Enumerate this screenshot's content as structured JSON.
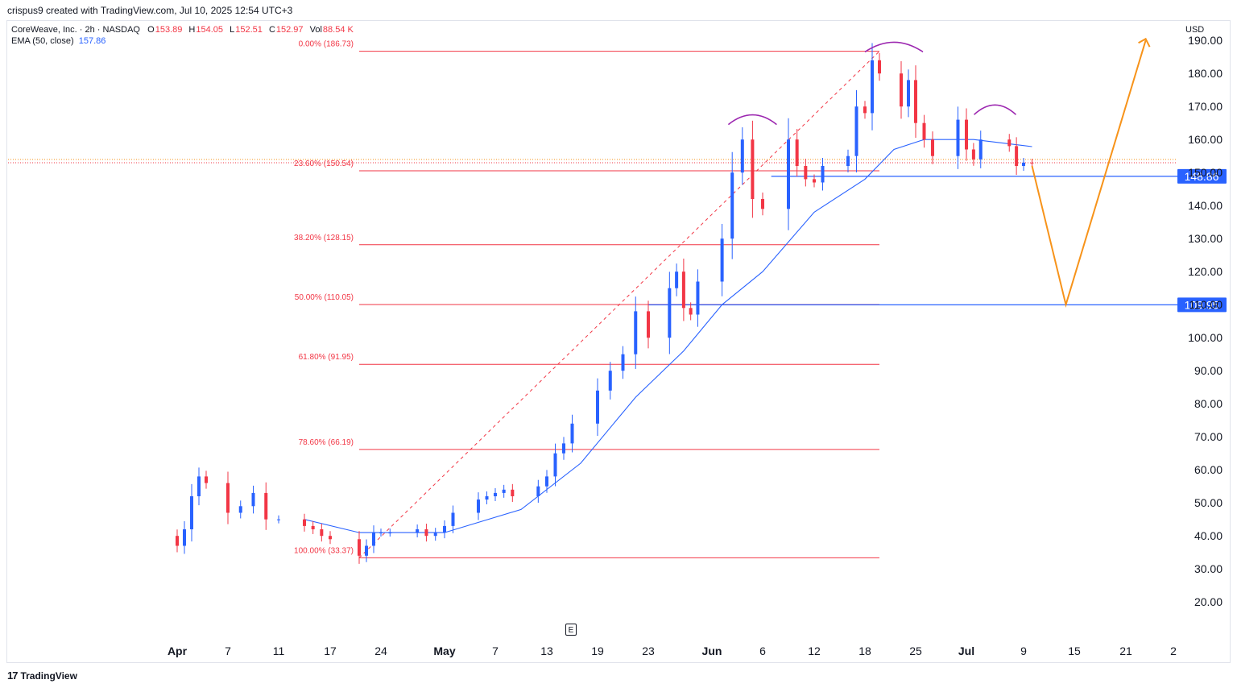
{
  "header": {
    "caption": "crispus9 created with TradingView.com, Jul 10, 2025 12:54 UTC+3"
  },
  "legend": {
    "symbol": "CoreWeave, Inc. · 2h · NASDAQ",
    "open_label": "O",
    "open": "153.89",
    "high_label": "H",
    "high": "154.05",
    "low_label": "L",
    "low": "152.51",
    "close_label": "C",
    "close": "152.97",
    "vol_label": "Vol",
    "vol": "88.54 K",
    "ema_label": "EMA (50, close)",
    "ema_value": "157.86"
  },
  "currency": "USD",
  "earnings_marker": "E",
  "footer": {
    "brand": "TradingView",
    "logo_glyph": "17"
  },
  "colors": {
    "up": "#2962ff",
    "down": "#f23645",
    "ema": "#2962ff",
    "fib": "#f23645",
    "support": "#2962ff",
    "projection": "#f7931a",
    "pattern_arc": "#9c27b0",
    "axis_text": "#131722"
  },
  "chart_data": {
    "type": "candlestick",
    "interval": "2h",
    "y_axis": {
      "side": "right",
      "ylim": [
        15,
        198
      ],
      "ticks": [
        20,
        30,
        40,
        50,
        60,
        70,
        80,
        90,
        100,
        110,
        120,
        130,
        140,
        150,
        160,
        170,
        180,
        190
      ],
      "tick_labels": [
        "20.00",
        "30.00",
        "40.00",
        "50.00",
        "60.00",
        "70.00",
        "80.00",
        "90.00",
        "100.00",
        "110.00",
        "120.00",
        "130.00",
        "140.00",
        "150.00",
        "160.00",
        "170.00",
        "180.00",
        "190.00"
      ]
    },
    "x_axis": {
      "ticks": [
        {
          "date": "2025-03-31",
          "label": "Apr"
        },
        {
          "date": "2025-04-07",
          "label": "7"
        },
        {
          "date": "2025-04-11",
          "label": "11"
        },
        {
          "date": "2025-04-17",
          "label": "17"
        },
        {
          "date": "2025-04-24",
          "label": "24"
        },
        {
          "date": "2025-05-01",
          "label": "May"
        },
        {
          "date": "2025-05-07",
          "label": "7"
        },
        {
          "date": "2025-05-13",
          "label": "13"
        },
        {
          "date": "2025-05-19",
          "label": "19"
        },
        {
          "date": "2025-05-23",
          "label": "23"
        },
        {
          "date": "2025-06-01",
          "label": "Jun"
        },
        {
          "date": "2025-06-06",
          "label": "6"
        },
        {
          "date": "2025-06-12",
          "label": "12"
        },
        {
          "date": "2025-06-18",
          "label": "18"
        },
        {
          "date": "2025-06-25",
          "label": "25"
        },
        {
          "date": "2025-07-01",
          "label": "Jul"
        },
        {
          "date": "2025-07-09",
          "label": "9"
        },
        {
          "date": "2025-07-15",
          "label": "15"
        },
        {
          "date": "2025-07-21",
          "label": "21"
        },
        {
          "date": "2025-08-02",
          "label": "2"
        }
      ]
    },
    "price_path": [
      {
        "date": "2025-03-28",
        "close": 40
      },
      {
        "date": "2025-03-31",
        "close": 37
      },
      {
        "date": "2025-04-01",
        "close": 42
      },
      {
        "date": "2025-04-02",
        "close": 52
      },
      {
        "date": "2025-04-03",
        "close": 58
      },
      {
        "date": "2025-04-04",
        "close": 56
      },
      {
        "date": "2025-04-07",
        "close": 47
      },
      {
        "date": "2025-04-08",
        "close": 49
      },
      {
        "date": "2025-04-09",
        "close": 53
      },
      {
        "date": "2025-04-10",
        "close": 45
      },
      {
        "date": "2025-04-11",
        "close": 45
      },
      {
        "date": "2025-04-14",
        "close": 43
      },
      {
        "date": "2025-04-15",
        "close": 42
      },
      {
        "date": "2025-04-16",
        "close": 40
      },
      {
        "date": "2025-04-17",
        "close": 39
      },
      {
        "date": "2025-04-21",
        "close": 34
      },
      {
        "date": "2025-04-22",
        "close": 37
      },
      {
        "date": "2025-04-23",
        "close": 41
      },
      {
        "date": "2025-04-24",
        "close": 41
      },
      {
        "date": "2025-04-25",
        "close": 41
      },
      {
        "date": "2025-04-28",
        "close": 42
      },
      {
        "date": "2025-04-29",
        "close": 40
      },
      {
        "date": "2025-04-30",
        "close": 41
      },
      {
        "date": "2025-05-01",
        "close": 43
      },
      {
        "date": "2025-05-02",
        "close": 47
      },
      {
        "date": "2025-05-05",
        "close": 51
      },
      {
        "date": "2025-05-06",
        "close": 52
      },
      {
        "date": "2025-05-07",
        "close": 53
      },
      {
        "date": "2025-05-08",
        "close": 54
      },
      {
        "date": "2025-05-09",
        "close": 52
      },
      {
        "date": "2025-05-12",
        "close": 55
      },
      {
        "date": "2025-05-13",
        "close": 58
      },
      {
        "date": "2025-05-14",
        "close": 65
      },
      {
        "date": "2025-05-15",
        "close": 68
      },
      {
        "date": "2025-05-16",
        "close": 74
      },
      {
        "date": "2025-05-19",
        "close": 84
      },
      {
        "date": "2025-05-20",
        "close": 90
      },
      {
        "date": "2025-05-21",
        "close": 95
      },
      {
        "date": "2025-05-22",
        "close": 108
      },
      {
        "date": "2025-05-23",
        "close": 100
      },
      {
        "date": "2025-05-26",
        "close": 115
      },
      {
        "date": "2025-05-27",
        "close": 120
      },
      {
        "date": "2025-05-28",
        "close": 109
      },
      {
        "date": "2025-05-29",
        "close": 107
      },
      {
        "date": "2025-05-30",
        "close": 117
      },
      {
        "date": "2025-06-02",
        "close": 130
      },
      {
        "date": "2025-06-03",
        "close": 150
      },
      {
        "date": "2025-06-04",
        "close": 160
      },
      {
        "date": "2025-06-05",
        "close": 142
      },
      {
        "date": "2025-06-06",
        "close": 139
      },
      {
        "date": "2025-06-09",
        "close": 160
      },
      {
        "date": "2025-06-10",
        "close": 152
      },
      {
        "date": "2025-06-11",
        "close": 148
      },
      {
        "date": "2025-06-12",
        "close": 147
      },
      {
        "date": "2025-06-13",
        "close": 152
      },
      {
        "date": "2025-06-16",
        "close": 155
      },
      {
        "date": "2025-06-17",
        "close": 170
      },
      {
        "date": "2025-06-18",
        "close": 168
      },
      {
        "date": "2025-06-19",
        "close": 184
      },
      {
        "date": "2025-06-20",
        "close": 180
      },
      {
        "date": "2025-06-23",
        "close": 170
      },
      {
        "date": "2025-06-24",
        "close": 178
      },
      {
        "date": "2025-06-25",
        "close": 165
      },
      {
        "date": "2025-06-26",
        "close": 160
      },
      {
        "date": "2025-06-27",
        "close": 155
      },
      {
        "date": "2025-06-30",
        "close": 166
      },
      {
        "date": "2025-07-01",
        "close": 157
      },
      {
        "date": "2025-07-02",
        "close": 154
      },
      {
        "date": "2025-07-03",
        "close": 160
      },
      {
        "date": "2025-07-07",
        "close": 158
      },
      {
        "date": "2025-07-08",
        "close": 152
      },
      {
        "date": "2025-07-09",
        "close": 153
      },
      {
        "date": "2025-07-10",
        "close": 152.97
      }
    ],
    "ema_50": [
      {
        "date": "2025-04-14",
        "value": 45
      },
      {
        "date": "2025-04-21",
        "value": 41
      },
      {
        "date": "2025-05-01",
        "value": 41
      },
      {
        "date": "2025-05-10",
        "value": 48
      },
      {
        "date": "2025-05-17",
        "value": 62
      },
      {
        "date": "2025-05-22",
        "value": 82
      },
      {
        "date": "2025-05-28",
        "value": 96
      },
      {
        "date": "2025-06-02",
        "value": 110
      },
      {
        "date": "2025-06-06",
        "value": 120
      },
      {
        "date": "2025-06-12",
        "value": 138
      },
      {
        "date": "2025-06-18",
        "value": 148
      },
      {
        "date": "2025-06-22",
        "value": 157
      },
      {
        "date": "2025-06-26",
        "value": 160
      },
      {
        "date": "2025-07-02",
        "value": 160
      },
      {
        "date": "2025-07-10",
        "value": 157.86
      }
    ],
    "fibonacci": {
      "start_date": "2025-04-21",
      "end_date": "2025-06-20",
      "levels": [
        {
          "label": "0.00% (186.73)",
          "price": 186.73
        },
        {
          "label": "23.60% (150.54)",
          "price": 150.54
        },
        {
          "label": "38.20% (128.15)",
          "price": 128.15
        },
        {
          "label": "50.00% (110.05)",
          "price": 110.05
        },
        {
          "label": "61.80% (91.95)",
          "price": 91.95
        },
        {
          "label": "78.60% (66.19)",
          "price": 66.19
        },
        {
          "label": "100.00% (33.37)",
          "price": 33.37
        }
      ]
    },
    "horizontal_lines": [
      {
        "price": 148.86,
        "label": "148.86",
        "start_date": "2025-06-07"
      },
      {
        "price": 109.95,
        "label": "109.95",
        "start_date": "2025-05-23"
      }
    ],
    "current_price": 152.97,
    "projection": [
      {
        "date": "2025-07-10",
        "price": 152
      },
      {
        "date": "2025-07-14",
        "price": 110
      },
      {
        "date": "2025-07-26",
        "price": 190
      }
    ],
    "head_and_shoulders": [
      {
        "role": "left shoulder",
        "date": "2025-06-05"
      },
      {
        "role": "head",
        "date": "2025-06-22"
      },
      {
        "role": "right shoulder",
        "date": "2025-07-05"
      }
    ]
  }
}
